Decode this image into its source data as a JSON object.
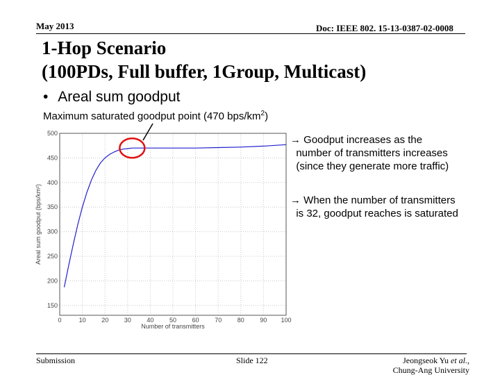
{
  "header": {
    "date": "May 2013",
    "doc": "Doc: IEEE 802. 15-13-0387-02-0008"
  },
  "title_line1": "1-Hop Scenario",
  "title_line2": "(100PDs, Full buffer, 1Group, Multicast)",
  "bullet_text": "Areal sum goodput",
  "subnote_text": "Maximum saturated goodput point (470 bps/km",
  "subnote_sup": "2",
  "subnote_end": ")",
  "note1": "Goodput increases as the\n  number of transmitters increases\n  (since they generate more traffic)",
  "note2": "When the number of transmitters\n  is 32, goodput reaches is saturated",
  "arrow_glyph": "→",
  "footer": {
    "left": "Submission",
    "center": "Slide 122",
    "right_line1": "Jeongseok Yu",
    "right_etal": "et al.,",
    "right_line2": "Chung-Ang University"
  },
  "colors": {
    "line": "#1f1fd0",
    "circle": "#e01010",
    "grid": "#c8c8c8",
    "axis": "#555555"
  },
  "chart_data": {
    "type": "line",
    "xlabel": "Number of transmitters",
    "ylabel": "Areal sum goodput (bps/km²)",
    "xlim": [
      0,
      100
    ],
    "ylim": [
      130,
      500
    ],
    "xticks": [
      "0",
      "10",
      "20",
      "30",
      "40",
      "50",
      "60",
      "70",
      "80",
      "90",
      "100"
    ],
    "yticks": [
      "500",
      "450",
      "400",
      "350",
      "300",
      "250",
      "200",
      "150"
    ],
    "grid": "dotted",
    "series": [
      {
        "x": [
          2,
          4,
          6,
          8,
          10,
          12,
          14,
          16,
          18,
          20,
          22,
          24,
          26,
          28,
          30,
          32,
          40,
          50,
          60,
          70,
          80,
          90,
          100
        ],
        "y": [
          187,
          232,
          275,
          315,
          350,
          380,
          405,
          425,
          440,
          450,
          457,
          462,
          466,
          468,
          469,
          470,
          470,
          470,
          470,
          471,
          472,
          474,
          477
        ]
      }
    ],
    "highlight": {
      "x": 32,
      "y": 470
    }
  }
}
